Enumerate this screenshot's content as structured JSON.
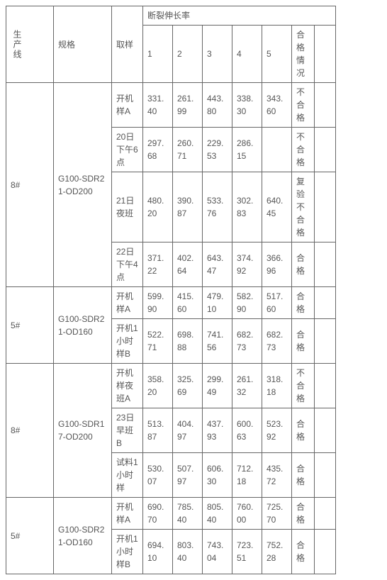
{
  "headers": {
    "line": "生产线",
    "spec": "规格",
    "sample": "取样",
    "elong": "断裂伸长率",
    "v1": "1",
    "v2": "2",
    "v3": "3",
    "v4": "4",
    "v5": "5",
    "pass": "合格情况"
  },
  "groups": [
    {
      "line": "8#",
      "spec": "G100-SDR21-OD200",
      "rows": [
        {
          "sample": "开机样A",
          "v1": "331.40",
          "v2": "261.99",
          "v3": "443.80",
          "v4": "338.30",
          "v5": "343.60",
          "pass": "不合格"
        },
        {
          "sample": "20日下午6点",
          "v1": "297.68",
          "v2": "260.71",
          "v3": "229.53",
          "v4": "286.15",
          "v5": "",
          "pass": "不合格"
        },
        {
          "sample": "21日夜班",
          "v1": "480.20",
          "v2": "390.87",
          "v3": "533.76",
          "v4": "302.83",
          "v5": "640.45",
          "pass": "复验不合格"
        },
        {
          "sample": "22日下午4点",
          "v1": "371.22",
          "v2": "402.64",
          "v3": "643.47",
          "v4": "374.92",
          "v5": "366.96",
          "pass": "合格"
        }
      ]
    },
    {
      "line": "5#",
      "spec": "G100-SDR21-OD160",
      "rows": [
        {
          "sample": "开机样A",
          "v1": "599.90",
          "v2": "415.60",
          "v3": "479.10",
          "v4": "582.90",
          "v5": "517.60",
          "pass": "合格"
        },
        {
          "sample": "开机1小时样B",
          "v1": "522.71",
          "v2": "698.88",
          "v3": "741.56",
          "v4": "682.73",
          "v5": "682.73",
          "pass": "合格"
        }
      ]
    },
    {
      "line": "8#",
      "spec": "G100-SDR17-OD200",
      "rows": [
        {
          "sample": "开机样夜班A",
          "v1": "358.20",
          "v2": "325.69",
          "v3": "299.49",
          "v4": "261.32",
          "v5": "318.18",
          "pass": "不合格"
        },
        {
          "sample": "23日早班B",
          "v1": "513.87",
          "v2": "404.97",
          "v3": "437.93",
          "v4": "600.63",
          "v5": "523.92",
          "pass": "合格"
        },
        {
          "sample": "试料1小时样",
          "v1": "530.07",
          "v2": "507.97",
          "v3": "606.30",
          "v4": "712.18",
          "v5": "435.72",
          "pass": "合格"
        }
      ]
    },
    {
      "line": "5#",
      "spec": "G100-SDR21-OD160",
      "rows": [
        {
          "sample": "开机样A",
          "v1": "690.70",
          "v2": "785.40",
          "v3": "805.40",
          "v4": "760.00",
          "v5": "725.70",
          "pass": "合格"
        },
        {
          "sample": "开机1小时样B",
          "v1": "694.10",
          "v2": "803.40",
          "v3": "743.04",
          "v4": "723.51",
          "v5": "752.28",
          "pass": "合格"
        }
      ]
    }
  ],
  "style": {
    "border_color": "#666666",
    "text_color": "#555555",
    "font_size_pt": 9,
    "background": "#ffffff"
  }
}
